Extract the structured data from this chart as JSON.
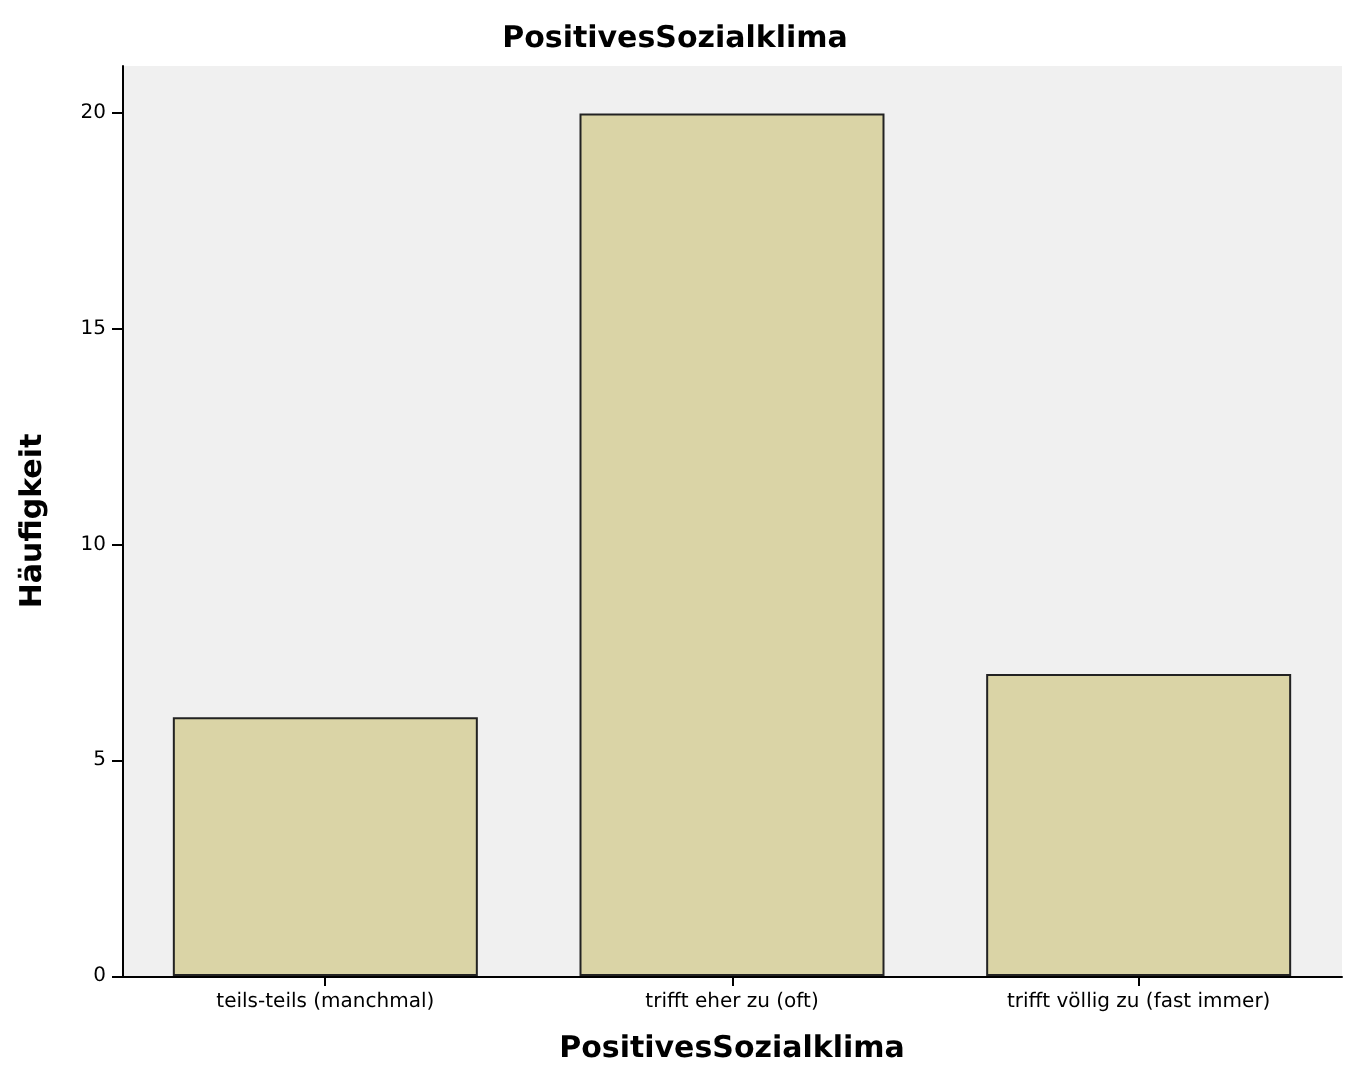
{
  "chart_data": {
    "type": "bar",
    "title": "PositivesSozialklima",
    "xlabel": "PositivesSozialklima",
    "ylabel": "Häufigkeit",
    "categories": [
      "teils-teils (manchmal)",
      "trifft eher zu (oft)",
      "trifft völlig zu (fast immer)"
    ],
    "values": [
      6,
      20,
      7
    ],
    "color": "#dad4a6",
    "ylim": [
      0,
      21.1
    ],
    "yticks": [
      0,
      5,
      10,
      15,
      20
    ],
    "grid": false
  }
}
